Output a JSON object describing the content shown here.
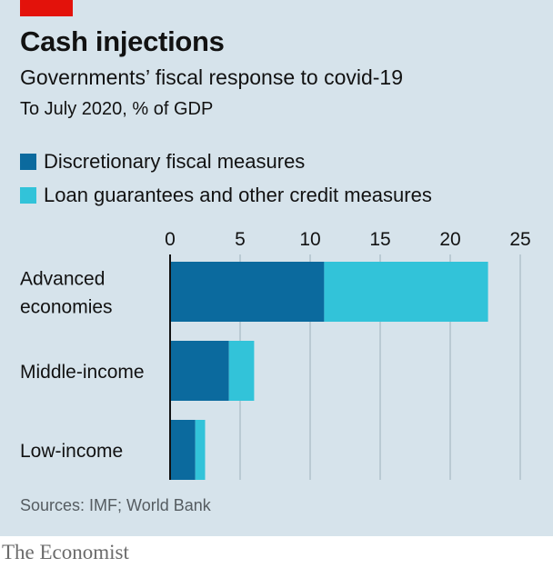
{
  "header": {
    "title": "Cash injections",
    "subtitle": "Governments’ fiscal response to covid-19",
    "units": "To July 2020, % of GDP"
  },
  "footer": {
    "source": "Sources: IMF; World Bank",
    "brand": "The Economist"
  },
  "colors": {
    "background": "#d6e3eb",
    "accent_red": "#e3120b",
    "series_dark": "#0b6a9e",
    "series_light": "#32c3d9",
    "axis_line": "#121212",
    "gridline": "#a8b9c3"
  },
  "chart_data": {
    "type": "bar",
    "orientation": "horizontal",
    "stacked": true,
    "categories": [
      [
        "Advanced",
        "economies"
      ],
      [
        "Middle-income"
      ],
      [
        "Low-income"
      ]
    ],
    "series": [
      {
        "name": "Discretionary fiscal measures",
        "values": [
          11.0,
          4.2,
          1.8
        ],
        "color": "#0b6a9e"
      },
      {
        "name": "Loan guarantees and other credit measures",
        "values": [
          11.7,
          1.8,
          0.7
        ],
        "color": "#32c3d9"
      }
    ],
    "xlim": [
      0,
      25
    ],
    "xticks": [
      0,
      5,
      10,
      15,
      20,
      25
    ],
    "grid": true,
    "legend_position": "top-left"
  }
}
